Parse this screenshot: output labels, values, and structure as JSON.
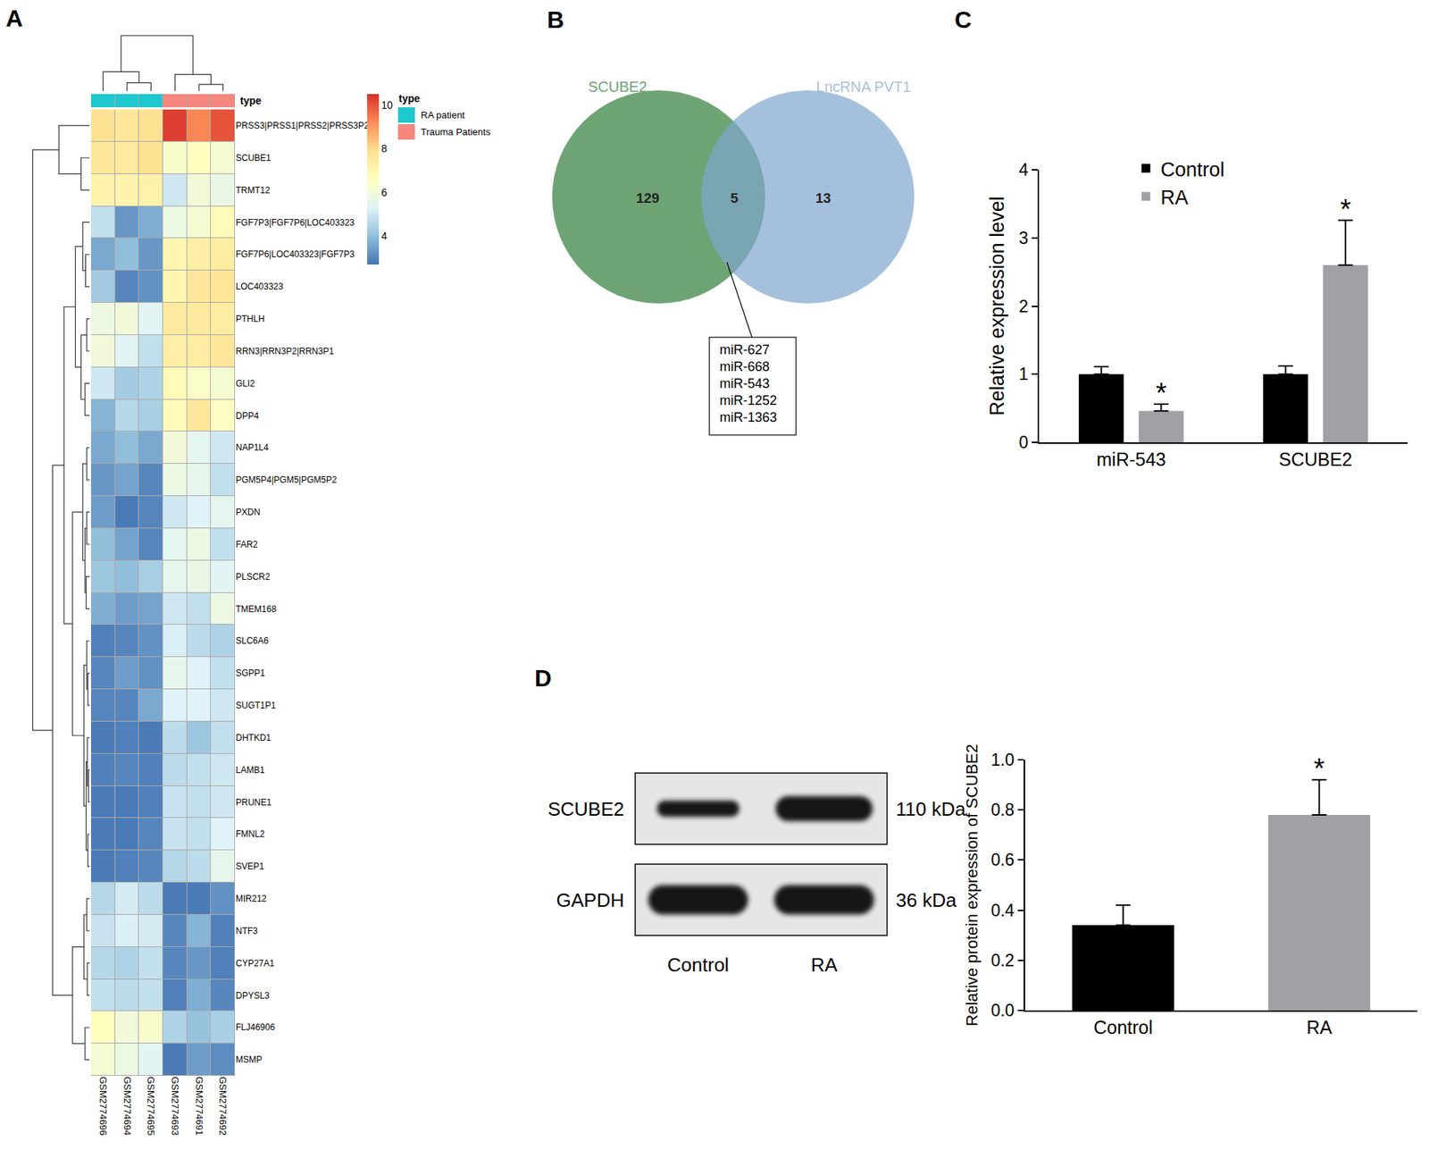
{
  "chart_data": [
    {
      "type": "heatmap",
      "panel": "A",
      "columns": [
        "GSM2774696",
        "GSM2774694",
        "GSM2774695",
        "GSM2774693",
        "GSM2774691",
        "GSM2774692"
      ],
      "column_groups": [
        "RA patient",
        "RA patient",
        "RA patient",
        "Trauma Patients",
        "Trauma Patients",
        "Trauma Patients"
      ],
      "groups": [
        {
          "name": "RA patient",
          "color": "#1fc8cc"
        },
        {
          "name": "Trauma Patients",
          "color": "#f5877f"
        }
      ],
      "annotation_label": "type",
      "legend_title": "type",
      "rows": [
        "PRSS3|PRSS1|PRSS2|PRSS3P2",
        "SCUBE1",
        "TRMT12",
        "FGF7P3|FGF7P6|LOC403323",
        "FGF7P6|LOC403323|FGF7P3",
        "LOC403323",
        "PTHLH",
        "RRN3|RRN3P2|RRN3P1",
        "GLI2",
        "DPP4",
        "NAP1L4",
        "PGM5P4|PGM5|PGM5P2",
        "PXDN",
        "FAR2",
        "PLSCR2",
        "TMEM168",
        "SLC6A6",
        "SGPP1",
        "SUGT1P1",
        "DHTKD1",
        "LAMB1",
        "PRUNE1",
        "FMNL2",
        "SVEP1",
        "MIR212",
        "NTF3",
        "CYP27A1",
        "DPYSL3",
        "FLJ46906",
        "MSMP"
      ],
      "cells": [
        [
          7.8,
          7.6,
          7.8,
          10.3,
          9.3,
          10.0
        ],
        [
          7.6,
          7.5,
          7.8,
          6.3,
          6.6,
          6.2
        ],
        [
          7.1,
          7.1,
          7.2,
          5.0,
          6.0,
          5.7
        ],
        [
          4.8,
          3.3,
          3.7,
          5.8,
          6.2,
          6.8
        ],
        [
          3.6,
          4.0,
          3.3,
          7.0,
          7.3,
          7.4
        ],
        [
          4.3,
          3.0,
          3.2,
          7.0,
          7.6,
          7.7
        ],
        [
          5.8,
          6.0,
          5.4,
          7.5,
          7.5,
          7.4
        ],
        [
          6.0,
          5.4,
          4.8,
          7.3,
          7.4,
          7.6
        ],
        [
          5.0,
          4.3,
          4.5,
          6.8,
          6.4,
          6.2
        ],
        [
          3.8,
          4.6,
          4.4,
          6.8,
          7.6,
          6.5
        ],
        [
          3.6,
          4.0,
          3.6,
          6.0,
          5.5,
          5.0
        ],
        [
          3.3,
          3.5,
          3.0,
          5.8,
          5.6,
          4.8
        ],
        [
          3.4,
          2.8,
          3.0,
          5.0,
          5.3,
          5.5
        ],
        [
          4.0,
          3.5,
          3.0,
          5.5,
          5.8,
          4.8
        ],
        [
          4.2,
          4.0,
          4.4,
          5.6,
          5.7,
          5.4
        ],
        [
          3.7,
          3.4,
          3.5,
          5.0,
          4.8,
          5.8
        ],
        [
          2.9,
          3.0,
          3.2,
          5.2,
          4.7,
          4.5
        ],
        [
          3.0,
          3.4,
          3.2,
          5.6,
          5.3,
          4.8
        ],
        [
          3.0,
          3.0,
          3.6,
          5.3,
          5.3,
          5.0
        ],
        [
          2.8,
          2.9,
          2.8,
          4.7,
          4.2,
          4.8
        ],
        [
          2.9,
          3.0,
          2.9,
          4.7,
          4.8,
          5.0
        ],
        [
          2.8,
          2.8,
          2.9,
          4.9,
          4.8,
          5.0
        ],
        [
          2.8,
          2.8,
          3.0,
          4.9,
          4.8,
          5.3
        ],
        [
          2.8,
          2.9,
          3.0,
          4.6,
          4.7,
          5.6
        ],
        [
          4.6,
          5.1,
          4.7,
          2.8,
          2.8,
          3.2
        ],
        [
          4.9,
          5.2,
          5.1,
          3.0,
          3.8,
          2.9
        ],
        [
          4.6,
          4.5,
          4.8,
          3.0,
          3.3,
          2.9
        ],
        [
          4.8,
          4.7,
          4.8,
          2.9,
          3.7,
          3.0
        ],
        [
          6.6,
          6.0,
          6.3,
          4.5,
          4.1,
          4.4
        ],
        [
          6.2,
          5.8,
          5.4,
          2.8,
          3.4,
          3.1
        ]
      ],
      "colorbar_range": [
        2.7,
        10.5
      ],
      "colorbar_ticks": [
        4,
        6,
        8,
        10
      ],
      "row_dendrogram": {
        "h": 1,
        "c": [
          {
            "h": 0.54,
            "c": [
              0,
              {
                "h": 0.15,
                "c": [
                  1,
                  2
                ]
              }
            ]
          },
          {
            "h": 0.65,
            "c": [
              {
                "h": 0.45,
                "c": [
                  {
                    "h": 0.25,
                    "c": [
                      {
                        "h": 0.12,
                        "c": [
                          3,
                          {
                            "h": 0.07,
                            "c": [
                              4,
                              5
                            ]
                          }
                        ]
                      },
                      {
                        "h": 0.15,
                        "c": [
                          {
                            "h": 0.05,
                            "c": [
                              6,
                              7
                            ]
                          },
                          {
                            "h": 0.08,
                            "c": [
                              8,
                              9
                            ]
                          }
                        ]
                      }
                    ]
                  },
                  {
                    "h": 0.3,
                    "c": [
                      {
                        "h": 0.12,
                        "c": [
                          {
                            "h": 0.05,
                            "c": [
                              10,
                              11
                            ]
                          },
                          {
                            "h": 0.08,
                            "c": [
                              {
                                "h": 0.05,
                                "c": [
                                  12,
                                  13
                                ]
                              },
                              {
                                "h": 0.06,
                                "c": [
                                  14,
                                  15
                                ]
                              }
                            ]
                          }
                        ]
                      },
                      {
                        "h": 0.1,
                        "c": [
                          {
                            "h": 0.05,
                            "c": [
                              16,
                              {
                                "h": 0.03,
                                "c": [
                                  17,
                                  18
                                ]
                              }
                            ]
                          },
                          {
                            "h": 0.06,
                            "c": [
                              {
                                "h": 0.04,
                                "c": [
                                  19,
                                  {
                                    "h": 0.02,
                                    "c": [
                                      20,
                                      21
                                    ]
                                  }
                                ]
                              },
                              {
                                "h": 0.03,
                                "c": [
                                  22,
                                  23
                                ]
                              }
                            ]
                          }
                        ]
                      }
                    ]
                  }
                ]
              },
              {
                "h": 0.3,
                "c": [
                  {
                    "h": 0.1,
                    "c": [
                      {
                        "h": 0.05,
                        "c": [
                          24,
                          25
                        ]
                      },
                      {
                        "h": 0.04,
                        "c": [
                          26,
                          27
                        ]
                      }
                    ]
                  },
                  {
                    "h": 0.08,
                    "c": [
                      28,
                      29
                    ]
                  }
                ]
              }
            ]
          }
        ]
      },
      "col_dendrogram": {
        "h": 1,
        "c": [
          {
            "h": 0.35,
            "c": [
              0,
              {
                "h": 0.15,
                "c": [
                  1,
                  2
                ]
              }
            ]
          },
          {
            "h": 0.3,
            "c": [
              3,
              {
                "h": 0.12,
                "c": [
                  4,
                  5
                ]
              }
            ]
          }
        ]
      }
    },
    {
      "type": "venn",
      "panel": "B",
      "sets": [
        {
          "name": "SCUBE2",
          "color": "#6ea474"
        },
        {
          "name": "LncRNA PVT1",
          "color": "#7fa5cd"
        }
      ],
      "values": [
        129,
        5,
        13
      ],
      "intersection_items": [
        "miR-627",
        "miR-668",
        "miR-543",
        "miR-1252",
        "miR-1363"
      ]
    },
    {
      "type": "bar",
      "panel": "C",
      "categories": [
        "miR-543",
        "SCUBE2"
      ],
      "series": [
        {
          "name": "Control",
          "color": "#000000",
          "values": [
            1,
            1
          ],
          "errors": [
            0.11,
            0.12
          ]
        },
        {
          "name": "RA",
          "color": "#a0a0a5",
          "values": [
            0.46,
            2.6
          ],
          "errors": [
            0.1,
            0.66
          ],
          "significance": [
            "*",
            "*"
          ]
        }
      ],
      "ylabel": "Relative expression level",
      "ylim": [
        0,
        4
      ],
      "yticks": [
        0,
        1,
        2,
        3,
        4
      ],
      "legend": "top"
    },
    {
      "type": "blot",
      "panel": "D",
      "rows": [
        {
          "label": "SCUBE2",
          "size": "110 kDa"
        },
        {
          "label": "GAPDH",
          "size": "36 kDa"
        }
      ],
      "lanes": [
        "Control",
        "RA"
      ]
    },
    {
      "type": "bar",
      "panel": "D",
      "categories": [
        "Control",
        "RA"
      ],
      "values": [
        0.34,
        0.78
      ],
      "errors": [
        0.08,
        0.14
      ],
      "colors": [
        "#000000",
        "#a0a0a5"
      ],
      "significance": [
        null,
        "*"
      ],
      "ylabel": "Relative protein expression of SCUBE2",
      "ylim": [
        0,
        1
      ],
      "yticks": [
        {
          "value": 0,
          "label": "0.0"
        },
        0.2,
        0.4,
        0.6,
        0.8,
        {
          "value": 1,
          "label": "1.0"
        }
      ]
    }
  ]
}
